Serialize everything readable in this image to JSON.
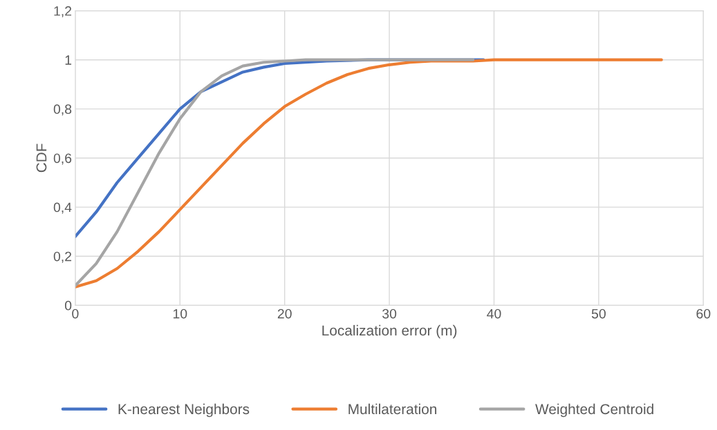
{
  "chart_data": {
    "type": "line",
    "xlabel": "Localization error (m)",
    "ylabel": "CDF",
    "xlim": [
      0,
      60
    ],
    "xticks": [
      0,
      10,
      20,
      30,
      40,
      50,
      60
    ],
    "ylim": [
      0,
      1.2
    ],
    "yticks": [
      0,
      {
        "value": 0.2,
        "label": "0,2"
      },
      {
        "value": 0.4,
        "label": "0,4"
      },
      {
        "value": 0.6,
        "label": "0,6"
      },
      {
        "value": 0.8,
        "label": "0,8"
      },
      1,
      {
        "value": 1.2,
        "label": "1,2"
      }
    ],
    "grid": true,
    "legend": "bottom",
    "marker": "none",
    "line_style": "solid",
    "series": [
      {
        "name": "K-nearest Neighbors",
        "color": "#4472c4",
        "x": [
          0,
          2,
          4,
          6,
          8,
          10,
          12,
          14,
          16,
          18,
          20,
          22,
          24,
          28,
          39
        ],
        "values": [
          0.28,
          0.38,
          0.5,
          0.6,
          0.7,
          0.8,
          0.87,
          0.91,
          0.95,
          0.97,
          0.985,
          0.99,
          0.995,
          1,
          1
        ]
      },
      {
        "name": "Multilateration",
        "color": "#ed7d31",
        "x": [
          0,
          2,
          4,
          6,
          8,
          10,
          12,
          14,
          16,
          18,
          20,
          22,
          24,
          26,
          28,
          30,
          32,
          34,
          38,
          40,
          56
        ],
        "values": [
          0.075,
          0.1,
          0.15,
          0.22,
          0.3,
          0.39,
          0.48,
          0.57,
          0.66,
          0.74,
          0.81,
          0.86,
          0.905,
          0.94,
          0.965,
          0.98,
          0.99,
          0.995,
          0.995,
          1,
          1
        ]
      },
      {
        "name": "Weighted Centroid",
        "color": "#a5a5a5",
        "x": [
          0,
          2,
          4,
          6,
          8,
          10,
          12,
          14,
          16,
          18,
          20,
          22,
          38
        ],
        "values": [
          0.08,
          0.17,
          0.3,
          0.46,
          0.62,
          0.76,
          0.87,
          0.935,
          0.975,
          0.99,
          0.995,
          1,
          1
        ]
      }
    ]
  }
}
